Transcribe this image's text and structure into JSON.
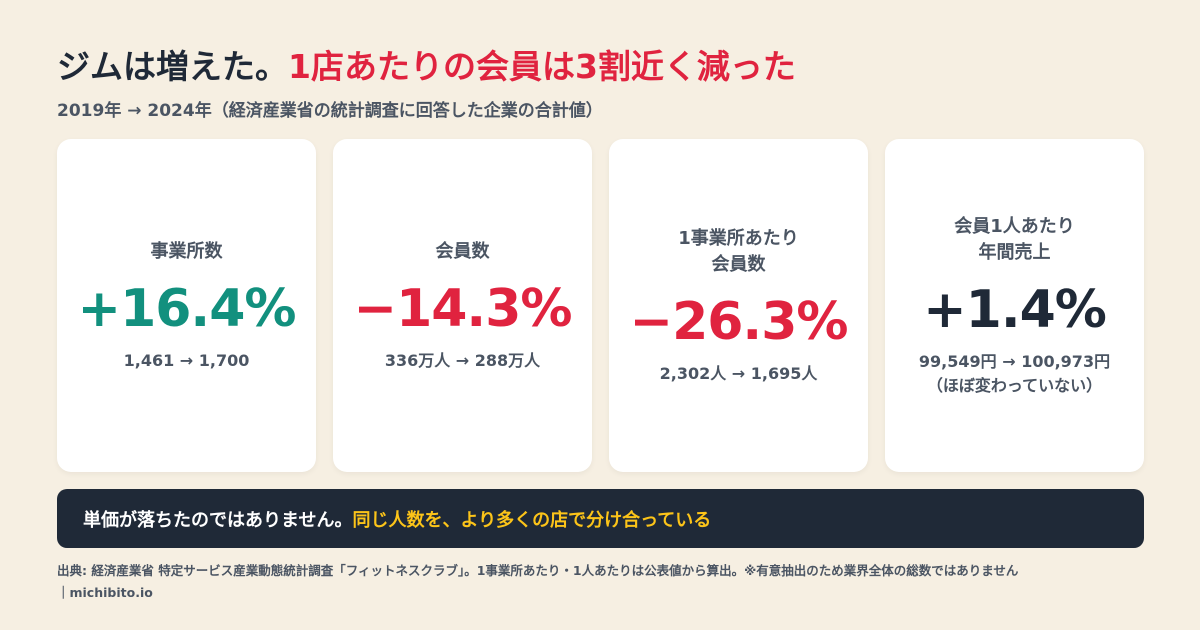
{
  "header": {
    "title_part1": "ジムは増えた。",
    "title_part2": "1店あたりの会員は3割近く減った",
    "subtitle": "2019年 → 2024年（経済産業省の統計調査に回答した企業の合計値）"
  },
  "cards": [
    {
      "label": [
        "事業所数"
      ],
      "value": "+16.4%",
      "detail": [
        "1,461 → 1,700"
      ]
    },
    {
      "label": [
        "会員数"
      ],
      "value": "−14.3%",
      "detail": [
        "336万人 → 288万人"
      ]
    },
    {
      "label": [
        "1事業所あたり",
        "会員数"
      ],
      "value": "−26.3%",
      "detail": [
        "2,302人 → 1,695人"
      ]
    },
    {
      "label": [
        "会員1人あたり",
        "年間売上"
      ],
      "value": "+1.4%",
      "detail": [
        "99,549円 → 100,973円",
        "（ほぼ変わっていない）"
      ]
    }
  ],
  "banner": {
    "text_part1": "単価が落ちたのではありません。",
    "text_part2": "同じ人数を、より多くの店で分け合っている"
  },
  "footer": {
    "source": "出典: 経済産業省 特定サービス産業動態統計調査「フィットネスクラブ」。1事業所あたり・1人あたりは公表値から算出。※有意抽出のため業界全体の総数ではありません",
    "site": "｜michibito.io"
  }
}
